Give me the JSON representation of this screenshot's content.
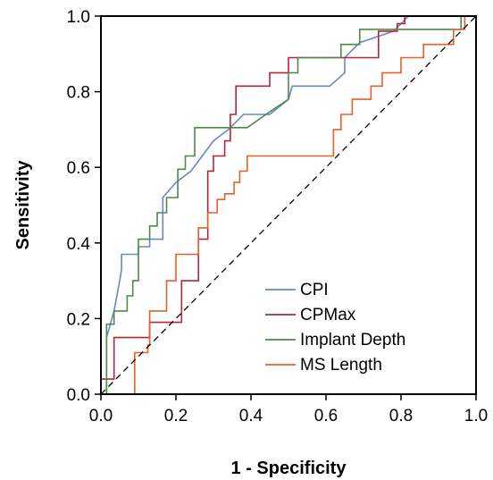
{
  "chart_data": {
    "type": "line",
    "xlabel": "1 - Specificity",
    "ylabel": "Sensitivity",
    "xlim": [
      0,
      1
    ],
    "ylim": [
      0,
      1
    ],
    "x_ticks": [
      "0.0",
      "0.2",
      "0.4",
      "0.6",
      "0.8",
      "1.0"
    ],
    "y_ticks": [
      "0.0",
      "0.2",
      "0.4",
      "0.6",
      "0.8",
      "1.0"
    ],
    "grid": false,
    "legend_position": "bottom-right",
    "reference_line": {
      "style": "dashed",
      "from": [
        0,
        0
      ],
      "to": [
        1,
        1
      ],
      "color": "#000000"
    },
    "series": [
      {
        "name": "CPI",
        "color": "#6a87c9",
        "x": [
          0,
          0.015,
          0.015,
          0.035,
          0.05,
          0.055,
          0.055,
          0.1,
          0.1,
          0.13,
          0.13,
          0.165,
          0.165,
          0.2,
          0.24,
          0.27,
          0.3,
          0.34,
          0.38,
          0.45,
          0.5,
          0.51,
          0.61,
          0.65,
          0.65,
          0.69,
          0.78,
          0.82,
          1.0
        ],
        "y": [
          0,
          0,
          0.15,
          0.22,
          0.3,
          0.33,
          0.37,
          0.37,
          0.39,
          0.39,
          0.41,
          0.41,
          0.52,
          0.56,
          0.59,
          0.63,
          0.67,
          0.7,
          0.74,
          0.74,
          0.78,
          0.815,
          0.815,
          0.85,
          0.89,
          0.93,
          0.96,
          1.0,
          1.0
        ]
      },
      {
        "name": "CPMax",
        "color": "#b5243f",
        "x": [
          0,
          0.035,
          0.035,
          0.13,
          0.13,
          0.215,
          0.215,
          0.26,
          0.26,
          0.285,
          0.285,
          0.3,
          0.3,
          0.33,
          0.33,
          0.345,
          0.345,
          0.36,
          0.36,
          0.45,
          0.45,
          0.5,
          0.5,
          0.74,
          0.74,
          0.79,
          0.79,
          0.81,
          0.81,
          1.0
        ],
        "y": [
          0.04,
          0.04,
          0.15,
          0.15,
          0.19,
          0.19,
          0.3,
          0.3,
          0.41,
          0.41,
          0.59,
          0.59,
          0.63,
          0.63,
          0.67,
          0.67,
          0.74,
          0.74,
          0.815,
          0.815,
          0.85,
          0.85,
          0.89,
          0.89,
          0.96,
          0.96,
          0.98,
          0.98,
          1.0,
          1.0
        ]
      },
      {
        "name": "Implant Depth",
        "color": "#4e8a48",
        "x": [
          0,
          0.015,
          0.015,
          0.035,
          0.035,
          0.07,
          0.07,
          0.085,
          0.085,
          0.1,
          0.1,
          0.13,
          0.13,
          0.15,
          0.15,
          0.175,
          0.175,
          0.205,
          0.205,
          0.225,
          0.225,
          0.25,
          0.25,
          0.39,
          0.44,
          0.5,
          0.5,
          0.525,
          0.525,
          0.64,
          0.64,
          0.69,
          0.69,
          0.96,
          0.96,
          1.0
        ],
        "y": [
          0,
          0,
          0.185,
          0.185,
          0.22,
          0.22,
          0.26,
          0.26,
          0.3,
          0.3,
          0.41,
          0.41,
          0.445,
          0.445,
          0.48,
          0.48,
          0.52,
          0.52,
          0.595,
          0.595,
          0.63,
          0.63,
          0.705,
          0.705,
          0.74,
          0.78,
          0.85,
          0.85,
          0.89,
          0.89,
          0.925,
          0.925,
          0.965,
          0.965,
          1.0,
          1.0
        ]
      },
      {
        "name": "MS Length",
        "color": "#e0622a",
        "x": [
          0.09,
          0.09,
          0.125,
          0.125,
          0.13,
          0.13,
          0.175,
          0.175,
          0.2,
          0.2,
          0.26,
          0.26,
          0.285,
          0.285,
          0.31,
          0.31,
          0.33,
          0.33,
          0.355,
          0.355,
          0.37,
          0.37,
          0.39,
          0.39,
          0.45,
          0.45,
          0.62,
          0.62,
          0.64,
          0.64,
          0.67,
          0.67,
          0.72,
          0.72,
          0.75,
          0.75,
          0.8,
          0.8,
          0.86,
          0.86,
          0.94,
          0.94,
          0.97,
          0.97,
          1.0
        ],
        "y": [
          0,
          0.11,
          0.11,
          0.13,
          0.13,
          0.22,
          0.22,
          0.3,
          0.3,
          0.37,
          0.37,
          0.44,
          0.44,
          0.48,
          0.48,
          0.515,
          0.515,
          0.53,
          0.53,
          0.56,
          0.56,
          0.59,
          0.59,
          0.63,
          0.63,
          0.63,
          0.63,
          0.7,
          0.7,
          0.74,
          0.74,
          0.78,
          0.78,
          0.815,
          0.815,
          0.85,
          0.85,
          0.89,
          0.89,
          0.925,
          0.925,
          0.965,
          0.965,
          1.0,
          1.0
        ]
      }
    ]
  }
}
